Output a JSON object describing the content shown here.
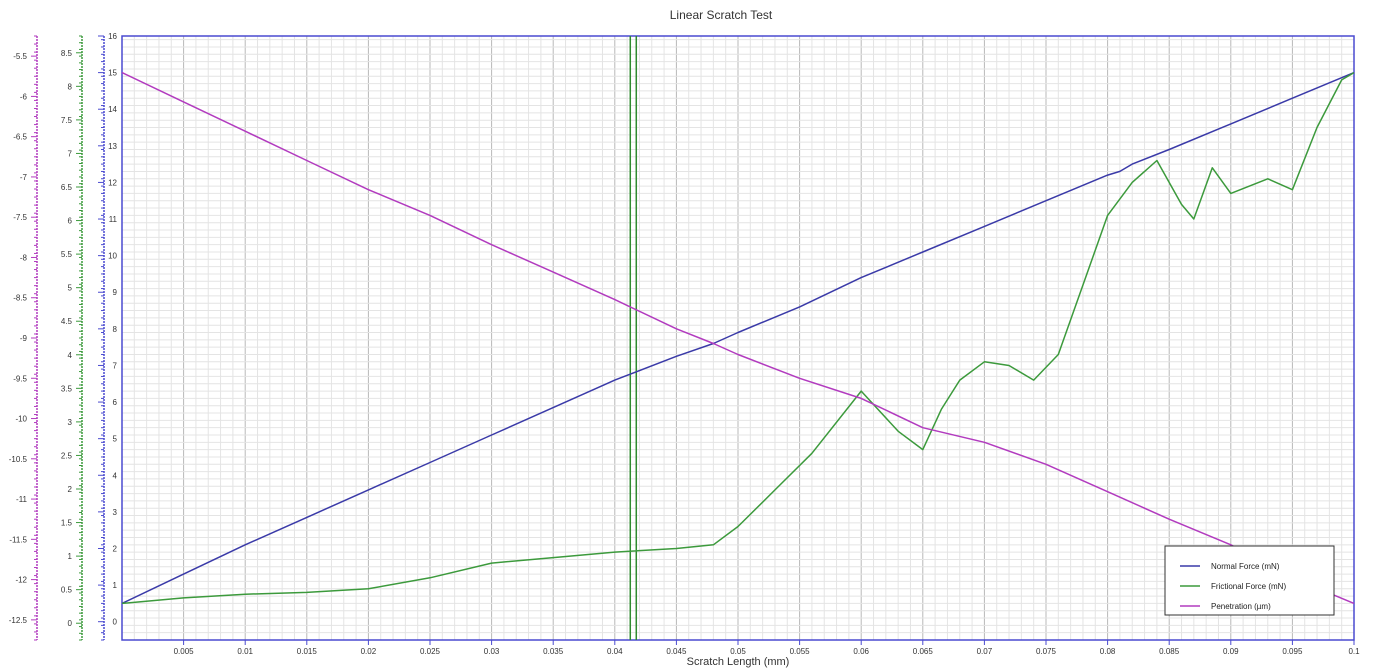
{
  "chart_data": {
    "type": "line",
    "title": "Linear Scratch Test",
    "xlabel": "Scratch Length (mm)",
    "xlim": [
      0,
      0.1
    ],
    "x_ticks": [
      "0.005",
      "0.01",
      "0.015",
      "0.02",
      "0.025",
      "0.03",
      "0.035",
      "0.04",
      "0.045",
      "0.05",
      "0.055",
      "0.06",
      "0.065",
      "0.07",
      "0.075",
      "0.08",
      "0.085",
      "0.09",
      "0.095",
      "0.1"
    ],
    "axes": {
      "normal_force": {
        "ylim": [
          -0.5,
          16
        ],
        "ticks": [
          "0",
          "1",
          "2",
          "3",
          "4",
          "5",
          "6",
          "7",
          "8",
          "9",
          "10",
          "11",
          "12",
          "13",
          "14",
          "15",
          "16"
        ],
        "color": "#3a3aa8"
      },
      "frictional_force": {
        "ylim": [
          -0.25,
          8.75
        ],
        "ticks": [
          "0",
          "0.5",
          "1",
          "1.5",
          "2",
          "2.5",
          "3",
          "3.5",
          "4",
          "4.5",
          "5",
          "5.5",
          "6",
          "6.5",
          "7",
          "7.5",
          "8",
          "8.5"
        ],
        "color": "#3c9a3c"
      },
      "penetration": {
        "ylim": [
          -12.75,
          -5.25
        ],
        "ticks": [
          "-12.5",
          "-12",
          "-11.5",
          "-11",
          "-10.5",
          "-10",
          "-9.5",
          "-9",
          "-8.5",
          "-8",
          "-7.5",
          "-7",
          "-6.5",
          "-6",
          "-5.5"
        ],
        "color": "#b23bbf"
      }
    },
    "marker_x": 0.0415,
    "marker_color": "#2e8b2e",
    "legend_position": "bottom-right",
    "grid": true,
    "series": [
      {
        "name": "Normal Force (mN)",
        "color": "#3a3aa8",
        "axis": "normal_force",
        "x": [
          0,
          0.005,
          0.01,
          0.015,
          0.02,
          0.025,
          0.03,
          0.035,
          0.04,
          0.045,
          0.048,
          0.05,
          0.055,
          0.06,
          0.065,
          0.07,
          0.075,
          0.08,
          0.081,
          0.082,
          0.085,
          0.09,
          0.095,
          0.1
        ],
        "y": [
          0.5,
          1.3,
          2.1,
          2.85,
          3.6,
          4.35,
          5.1,
          5.85,
          6.6,
          7.25,
          7.6,
          7.9,
          8.6,
          9.4,
          10.1,
          10.8,
          11.5,
          12.2,
          12.3,
          12.5,
          12.9,
          13.6,
          14.3,
          15.0
        ]
      },
      {
        "name": "Frictional Force (mN)",
        "color": "#3c9a3c",
        "axis": "frictional_force",
        "x": [
          0,
          0.005,
          0.01,
          0.015,
          0.02,
          0.025,
          0.03,
          0.035,
          0.04,
          0.045,
          0.048,
          0.05,
          0.053,
          0.056,
          0.06,
          0.063,
          0.065,
          0.0665,
          0.068,
          0.07,
          0.072,
          0.074,
          0.076,
          0.078,
          0.08,
          0.082,
          0.084,
          0.086,
          0.087,
          0.0885,
          0.09,
          0.093,
          0.095,
          0.097,
          0.099,
          0.1
        ],
        "y": [
          0.5,
          0.65,
          0.75,
          0.8,
          0.9,
          1.2,
          1.6,
          1.75,
          1.9,
          2.0,
          2.1,
          2.6,
          3.6,
          4.6,
          6.3,
          5.2,
          4.7,
          5.8,
          6.6,
          7.1,
          7.0,
          6.6,
          7.3,
          9.2,
          11.1,
          12.0,
          12.6,
          11.4,
          11.0,
          12.4,
          11.7,
          12.1,
          11.8,
          13.5,
          14.8,
          15.0
        ]
      },
      {
        "name": "Penetration (µm)",
        "color": "#b23bbf",
        "axis": "penetration",
        "x": [
          0,
          0.005,
          0.01,
          0.015,
          0.02,
          0.025,
          0.03,
          0.035,
          0.04,
          0.045,
          0.048,
          0.05,
          0.055,
          0.06,
          0.065,
          0.07,
          0.075,
          0.08,
          0.085,
          0.09,
          0.095,
          0.1
        ],
        "y": [
          15.0,
          14.2,
          13.4,
          12.6,
          11.8,
          11.1,
          10.3,
          9.55,
          8.8,
          8.0,
          7.6,
          7.3,
          6.65,
          6.1,
          5.3,
          4.9,
          4.3,
          3.55,
          2.8,
          2.1,
          1.2,
          0.5
        ]
      }
    ]
  }
}
